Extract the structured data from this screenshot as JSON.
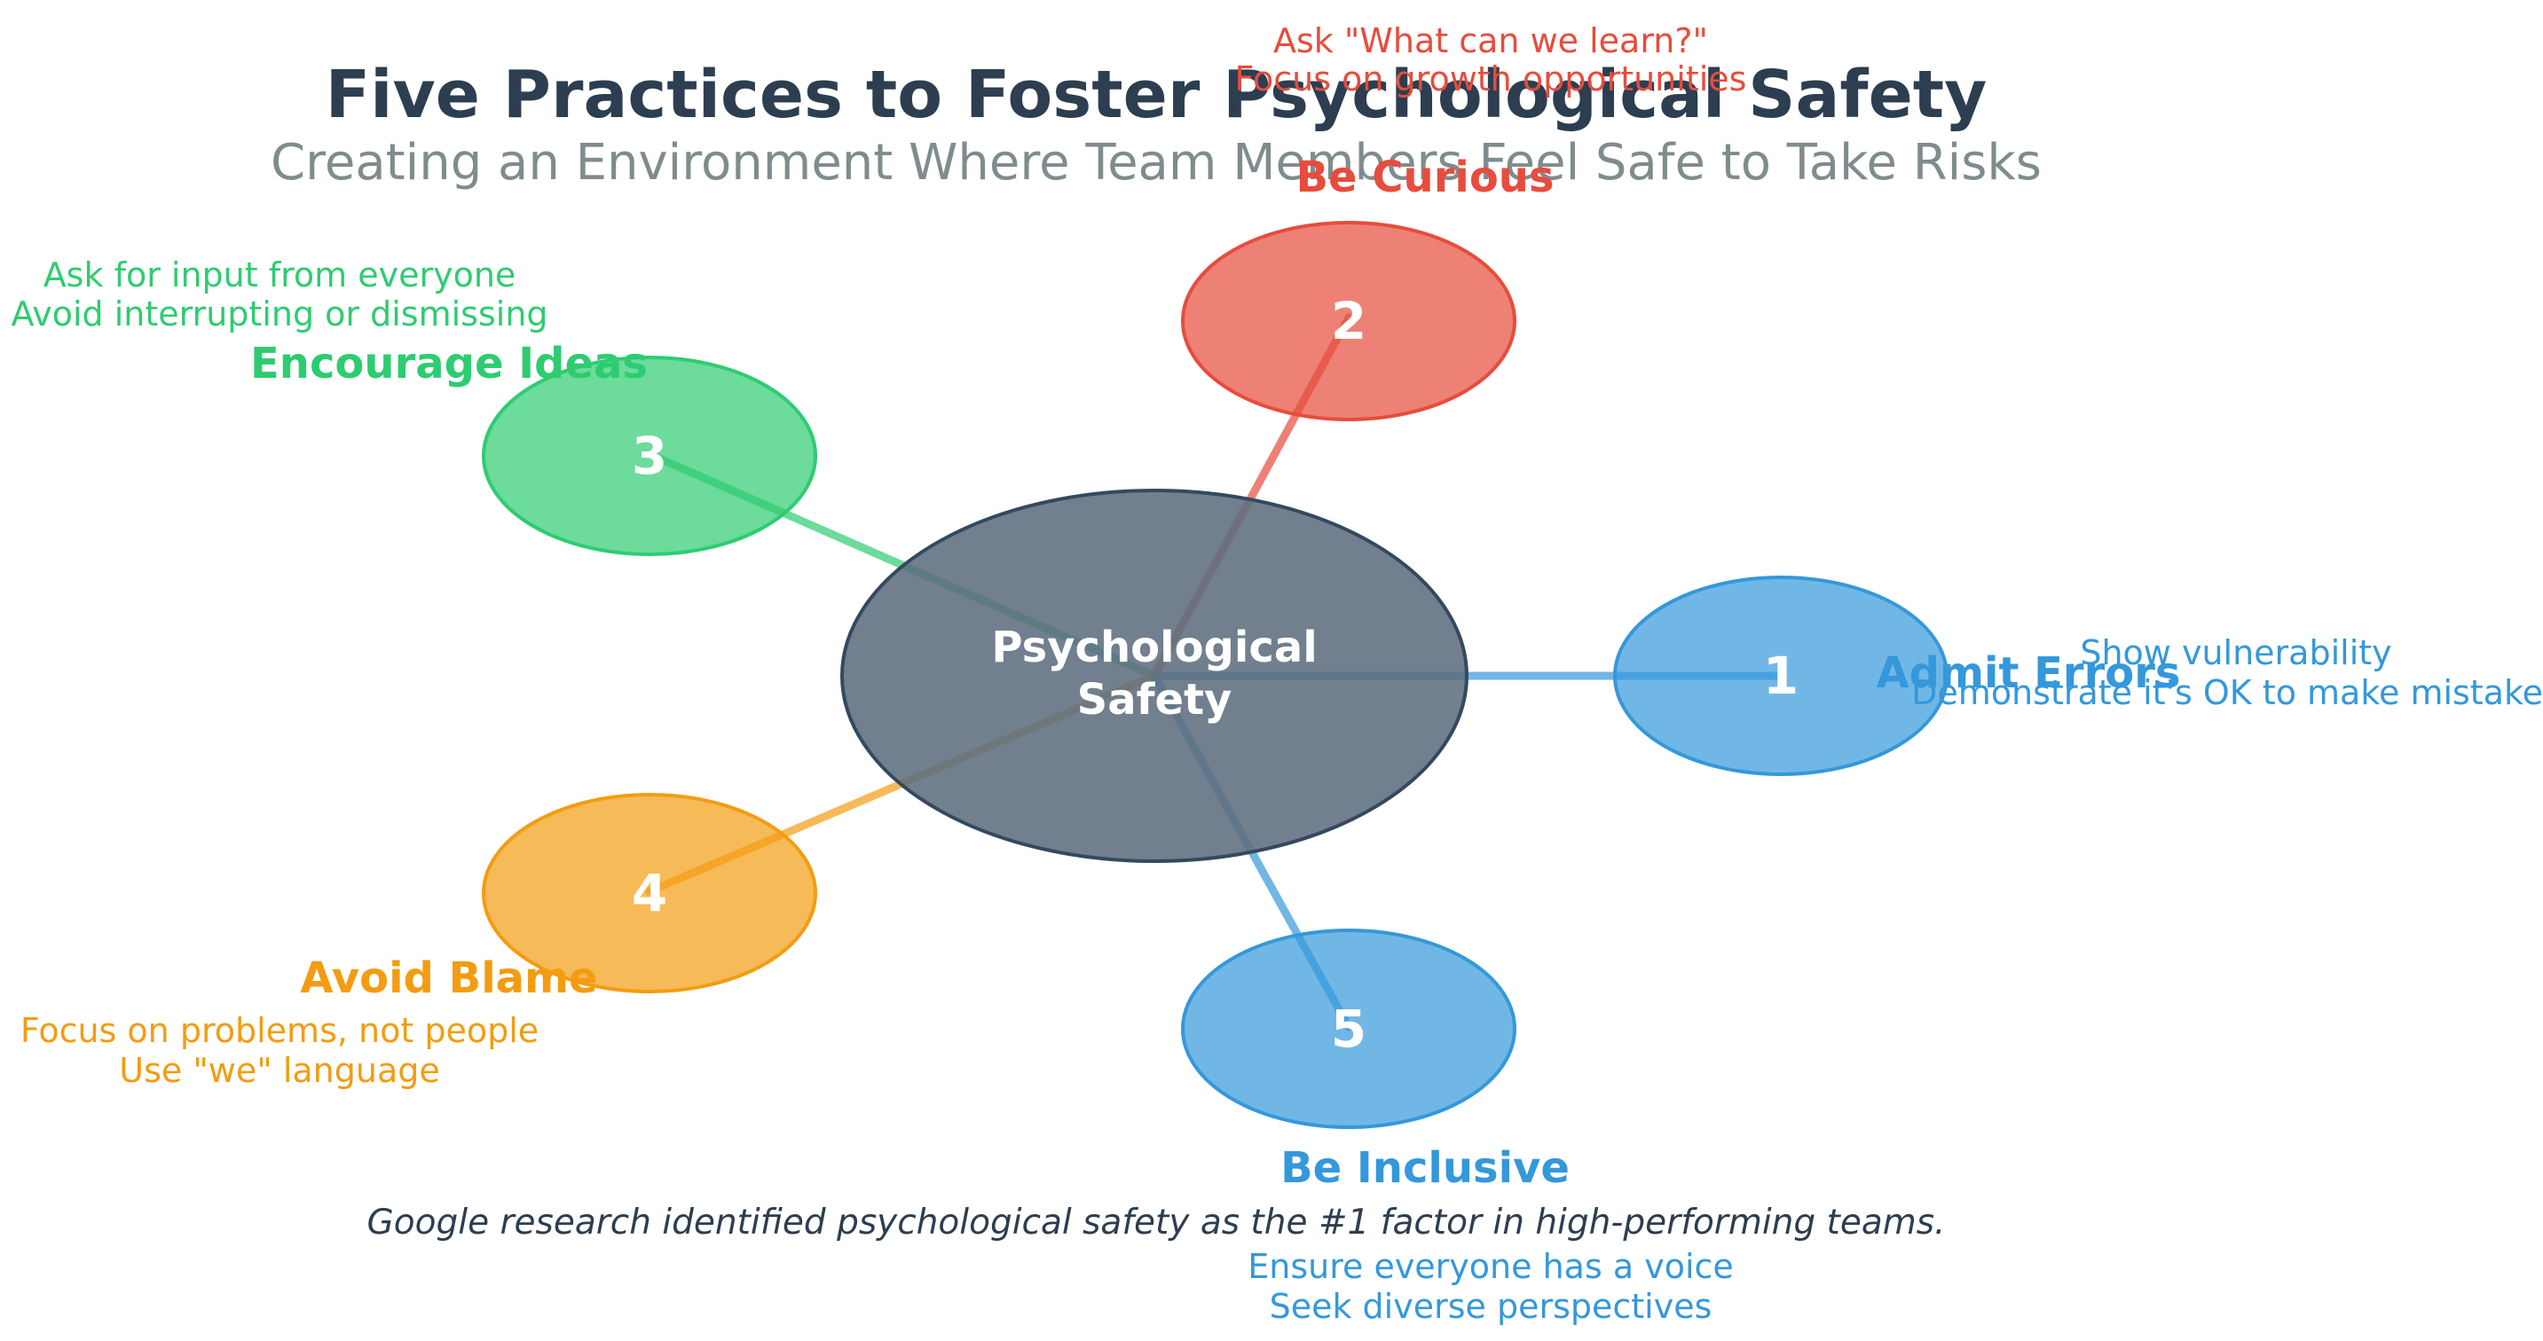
{
  "title": "Five Practices to Foster Psychological Safety",
  "subtitle": "Creating an Environment Where Team Members Feel Safe to Take Risks",
  "center": {
    "line1": "Psychological",
    "line2": "Safety",
    "color": "#5d6d7e"
  },
  "practices": [
    {
      "number": "1",
      "label": "Admit Errors",
      "details": [
        "Show vulnerability",
        "Demonstrate it's OK to make mistakes"
      ],
      "color": "#3498db"
    },
    {
      "number": "2",
      "label": "Be Curious",
      "details": [
        "Ask \"What can we learn?\"",
        "Focus on growth opportunities"
      ],
      "color": "#e74c3c"
    },
    {
      "number": "3",
      "label": "Encourage Ideas",
      "details": [
        "Ask for input from everyone",
        "Avoid interrupting or dismissing"
      ],
      "color": "#2ecc71"
    },
    {
      "number": "4",
      "label": "Avoid Blame",
      "details": [
        "Focus on problems, not people",
        "Use \"we\" language"
      ],
      "color": "#f39c12"
    },
    {
      "number": "5",
      "label": "Be Inclusive",
      "details": [
        "Ensure everyone has a voice",
        "Seek diverse perspectives"
      ],
      "color": "#3498db"
    }
  ],
  "footnote": "Google research identified psychological safety as the #1 factor in high-performing teams."
}
